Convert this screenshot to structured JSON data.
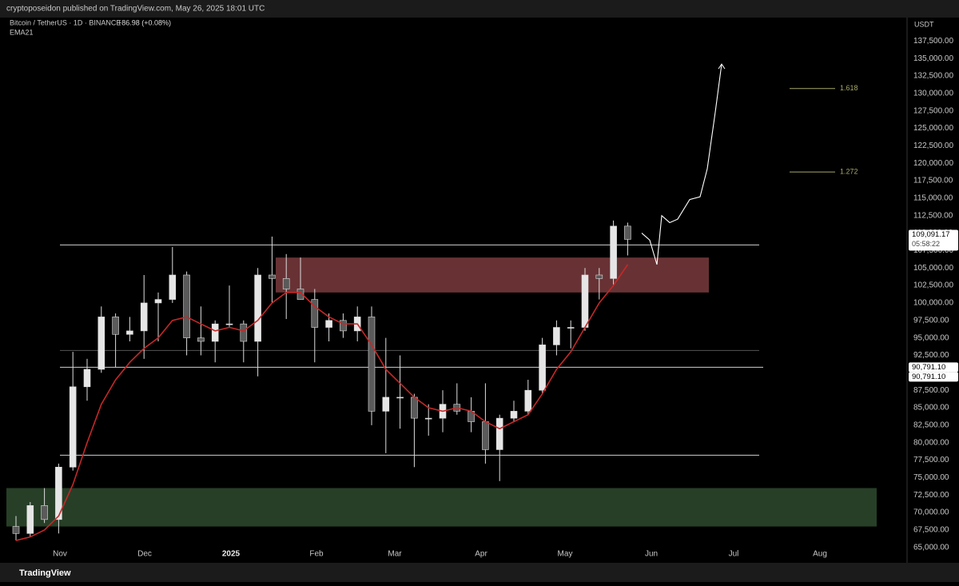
{
  "header": {
    "publisher": "cryptoposeidon published on TradingView.com, May 26, 2025 18:01 UTC",
    "logo": "TradingView"
  },
  "chart_data": {
    "type": "candlestick",
    "symbol": "Bitcoin / TetherUS · 1D · BINANCE",
    "change": "+86.98 (+0.08%)",
    "currency": "USDT",
    "up_color": "#e6e6e6",
    "down_color": "#5a5a5a",
    "open": [
      68000,
      67000,
      71000,
      69000,
      76500,
      88000,
      90500,
      98000,
      95500,
      96000,
      100000,
      100500,
      104000,
      95000,
      94500,
      97000,
      97000,
      94500,
      104000,
      103500,
      102000,
      100500,
      96500,
      97500,
      96000,
      98000,
      84500,
      86500,
      86500,
      83500,
      83500,
      85500,
      84500,
      83000,
      79000,
      83500,
      84500,
      87500,
      94000,
      96500,
      96500,
      104000,
      103500,
      111000
    ],
    "high": [
      69500,
      71500,
      73500,
      77000,
      93000,
      92000,
      99500,
      98500,
      98000,
      104000,
      101500,
      108000,
      104500,
      99500,
      97500,
      102500,
      97500,
      105000,
      109500,
      107000,
      106500,
      102000,
      98500,
      98500,
      99500,
      99500,
      95000,
      92500,
      87000,
      85500,
      87500,
      88500,
      86500,
      88500,
      84000,
      86000,
      89000,
      95000,
      97500,
      97500,
      105000,
      105000,
      111800,
      111500
    ],
    "low": [
      66000,
      66500,
      68500,
      67000,
      76000,
      86000,
      90000,
      90800,
      94500,
      92000,
      94500,
      100000,
      92500,
      92500,
      91500,
      96500,
      91500,
      89500,
      100000,
      97700,
      100500,
      91500,
      94500,
      95000,
      94500,
      82500,
      78500,
      82000,
      76500,
      81000,
      81500,
      84000,
      81500,
      77000,
      74500,
      83000,
      84000,
      87000,
      92500,
      93500,
      96000,
      100500,
      102500,
      106800
    ],
    "close": [
      67000,
      71000,
      69000,
      76500,
      88000,
      90500,
      98000,
      95500,
      96000,
      100000,
      100500,
      104000,
      95000,
      94500,
      97000,
      97000,
      94500,
      104000,
      103500,
      102000,
      100500,
      96500,
      97500,
      96000,
      98000,
      84500,
      86500,
      86500,
      83500,
      83500,
      85500,
      84500,
      83000,
      79000,
      83500,
      84500,
      87500,
      94000,
      96500,
      96500,
      104000,
      103500,
      111000,
      109100
    ],
    "ema": {
      "name": "EMA21",
      "color": "#c62828",
      "values": [
        66000,
        66500,
        67500,
        69500,
        74000,
        80000,
        85500,
        89000,
        91500,
        93500,
        95000,
        97500,
        98000,
        97000,
        96000,
        96500,
        96000,
        97500,
        100000,
        101500,
        101500,
        99500,
        98000,
        97000,
        97000,
        94000,
        90500,
        88500,
        86500,
        85000,
        84500,
        85000,
        84500,
        83000,
        82000,
        83000,
        84000,
        87000,
        90500,
        93000,
        96500,
        100000,
        102500,
        105500
      ]
    },
    "x_labels": [
      "Nov",
      "Dec",
      "2025",
      "Feb",
      "Mar",
      "Apr",
      "May",
      "Jun",
      "Jul",
      "Aug"
    ],
    "ylim": [
      62800,
      140850
    ],
    "yticks": [
      {
        "value": 65000,
        "label": "65,000.00"
      },
      {
        "value": 67500,
        "label": "67,500.00"
      },
      {
        "value": 70000,
        "label": "70,000.00"
      },
      {
        "value": 72500,
        "label": "72,500.00"
      },
      {
        "value": 75000,
        "label": "75,000.00"
      },
      {
        "value": 77500,
        "label": "77,500.00"
      },
      {
        "value": 80000,
        "label": "80,000.00"
      },
      {
        "value": 82500,
        "label": "82,500.00"
      },
      {
        "value": 85000,
        "label": "85,000.00"
      },
      {
        "value": 87500,
        "label": "87,500.00"
      },
      {
        "value": 90000,
        "label": "90,000.00"
      },
      {
        "value": 92500,
        "label": "92,500.00"
      },
      {
        "value": 95000,
        "label": "95,000.00"
      },
      {
        "value": 97500,
        "label": "97,500.00"
      },
      {
        "value": 100000,
        "label": "100,000.00"
      },
      {
        "value": 102500,
        "label": "102,500.00"
      },
      {
        "value": 105000,
        "label": "105,000.00"
      },
      {
        "value": 107500,
        "label": "107,500.00"
      },
      {
        "value": 110000,
        "label": "110,000.00"
      },
      {
        "value": 112500,
        "label": "112,500.00"
      },
      {
        "value": 115000,
        "label": "115,000.00"
      },
      {
        "value": 117500,
        "label": "117,500.00"
      },
      {
        "value": 120000,
        "label": "120,000.00"
      },
      {
        "value": 122500,
        "label": "122,500.00"
      },
      {
        "value": 125000,
        "label": "125,000.00"
      },
      {
        "value": 127500,
        "label": "127,500.00"
      },
      {
        "value": 130000,
        "label": "130,000.00"
      },
      {
        "value": 132500,
        "label": "132,500.00"
      },
      {
        "value": 135000,
        "label": "135,000.00"
      },
      {
        "value": 137500,
        "label": "137,500.00"
      }
    ],
    "price_labels": [
      {
        "value": 109091.17,
        "label": "109,091.17",
        "countdown": "05:58:22"
      },
      {
        "value": 90791.1,
        "label": "90,791.10"
      },
      {
        "value": 90791.1,
        "label": "90,791.10"
      }
    ],
    "levels": [
      {
        "value": 108300,
        "color": "#d0d0d0"
      },
      {
        "value": 93200,
        "color": "#555555"
      },
      {
        "value": 90791.1,
        "color": "#d0d0d0"
      },
      {
        "value": 78200,
        "color": "#d0d0d0"
      }
    ],
    "zones": [
      {
        "range": [
          101500,
          106500
        ],
        "color": "#7a3b3d"
      },
      {
        "range": [
          68000,
          73500
        ],
        "color": "#2e4a2e"
      }
    ],
    "fib_levels": [
      {
        "value": 130700,
        "label": "1.618"
      },
      {
        "value": 118750,
        "label": "1.272"
      }
    ],
    "projection": [
      110000,
      109000,
      105500,
      112500,
      111500,
      112000,
      114800,
      115200,
      119200,
      127300,
      134200
    ]
  }
}
